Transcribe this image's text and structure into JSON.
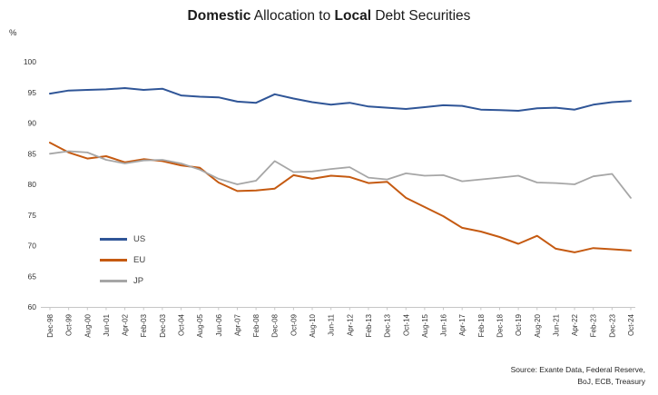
{
  "title": {
    "seg1": "Domestic",
    "seg2": " Allocation to ",
    "seg3": "Local",
    "seg4": " Debt Securities"
  },
  "axes": {
    "y_unit": "%",
    "yticks": [
      60,
      65,
      70,
      75,
      80,
      85,
      90,
      95,
      100
    ],
    "ymin": 60,
    "ymax": 100
  },
  "source": {
    "line1": "Source: Exante Data, Federal Reserve,",
    "line2": "BoJ, ECB, Treasury"
  },
  "chart_data": {
    "type": "line",
    "title": "Domestic Allocation to Local Debt Securities",
    "xlabel": "",
    "ylabel": "%",
    "ylim": [
      60,
      100
    ],
    "grid": false,
    "legend_position": "inside-left",
    "categories": [
      "Dec-98",
      "Oct-99",
      "Aug-00",
      "Jun-01",
      "Apr-02",
      "Feb-03",
      "Dec-03",
      "Oct-04",
      "Aug-05",
      "Jun-06",
      "Apr-07",
      "Feb-08",
      "Dec-08",
      "Oct-09",
      "Aug-10",
      "Jun-11",
      "Apr-12",
      "Feb-13",
      "Dec-13",
      "Oct-14",
      "Aug-15",
      "Jun-16",
      "Apr-17",
      "Feb-18",
      "Dec-18",
      "Oct-19",
      "Aug-20",
      "Jun-21",
      "Apr-22",
      "Feb-23",
      "Dec-23",
      "Oct-24"
    ],
    "series": [
      {
        "name": "US",
        "color": "#2F5597",
        "values": [
          94.8,
          95.3,
          95.4,
          95.5,
          95.7,
          95.4,
          95.6,
          94.5,
          94.3,
          94.2,
          93.5,
          93.3,
          94.7,
          94.0,
          93.4,
          93.0,
          93.3,
          92.7,
          92.5,
          92.3,
          92.6,
          92.9,
          92.8,
          92.2,
          92.1,
          92.0,
          92.4,
          92.5,
          92.2,
          93.0,
          93.4,
          93.6
        ]
      },
      {
        "name": "EU",
        "color": "#C55A11",
        "values": [
          86.8,
          85.2,
          84.2,
          84.6,
          83.6,
          84.1,
          83.8,
          83.1,
          82.7,
          80.3,
          78.9,
          79.0,
          79.3,
          81.5,
          80.9,
          81.4,
          81.2,
          80.2,
          80.4,
          77.8,
          76.3,
          74.8,
          72.9,
          72.3,
          71.4,
          70.3,
          71.6,
          69.5,
          68.9,
          69.6,
          69.4,
          69.2
        ]
      },
      {
        "name": "JP",
        "color": "#A6A6A6",
        "values": [
          85.0,
          85.4,
          85.2,
          84.0,
          83.4,
          83.9,
          84.0,
          83.4,
          82.4,
          80.9,
          80.0,
          80.6,
          83.8,
          82.0,
          82.1,
          82.5,
          82.8,
          81.1,
          80.8,
          81.8,
          81.4,
          81.5,
          80.5,
          80.8,
          81.1,
          81.4,
          80.3,
          80.2,
          80.0,
          81.3,
          81.7,
          77.8
        ]
      }
    ]
  }
}
